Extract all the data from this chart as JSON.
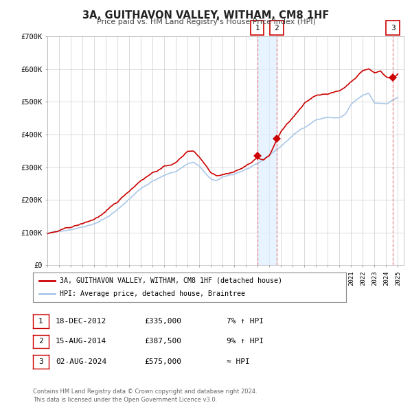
{
  "title": "3A, GUITHAVON VALLEY, WITHAM, CM8 1HF",
  "subtitle": "Price paid vs. HM Land Registry's House Price Index (HPI)",
  "background_color": "#ffffff",
  "grid_color": "#cccccc",
  "red_line_color": "#cc0000",
  "blue_line_color": "#aac8e8",
  "sale_dot_color": "#cc0000",
  "legend_label_red": "3A, GUITHAVON VALLEY, WITHAM, CM8 1HF (detached house)",
  "legend_label_blue": "HPI: Average price, detached house, Braintree",
  "sale_events": [
    {
      "num": 1,
      "date_num": 2012.96,
      "price": 335000,
      "label": "1",
      "desc": "18-DEC-2012",
      "price_str": "£335,000",
      "pct": "7% ↑ HPI"
    },
    {
      "num": 2,
      "date_num": 2014.62,
      "price": 387500,
      "label": "2",
      "desc": "15-AUG-2014",
      "price_str": "£387,500",
      "pct": "9% ↑ HPI"
    },
    {
      "num": 3,
      "date_num": 2024.58,
      "price": 575000,
      "label": "3",
      "desc": "02-AUG-2024",
      "price_str": "£575,000",
      "pct": "≈ HPI"
    }
  ],
  "ylim": [
    0,
    700000
  ],
  "yticks": [
    0,
    100000,
    200000,
    300000,
    400000,
    500000,
    600000,
    700000
  ],
  "ytick_labels": [
    "£0",
    "£100K",
    "£200K",
    "£300K",
    "£400K",
    "£500K",
    "£600K",
    "£700K"
  ],
  "xlim_start": 1995.0,
  "xlim_end": 2025.5,
  "span_color": "#ddeeff",
  "vline_color": "#dd6666",
  "footer": "Contains HM Land Registry data © Crown copyright and database right 2024.\nThis data is licensed under the Open Government Licence v3.0."
}
